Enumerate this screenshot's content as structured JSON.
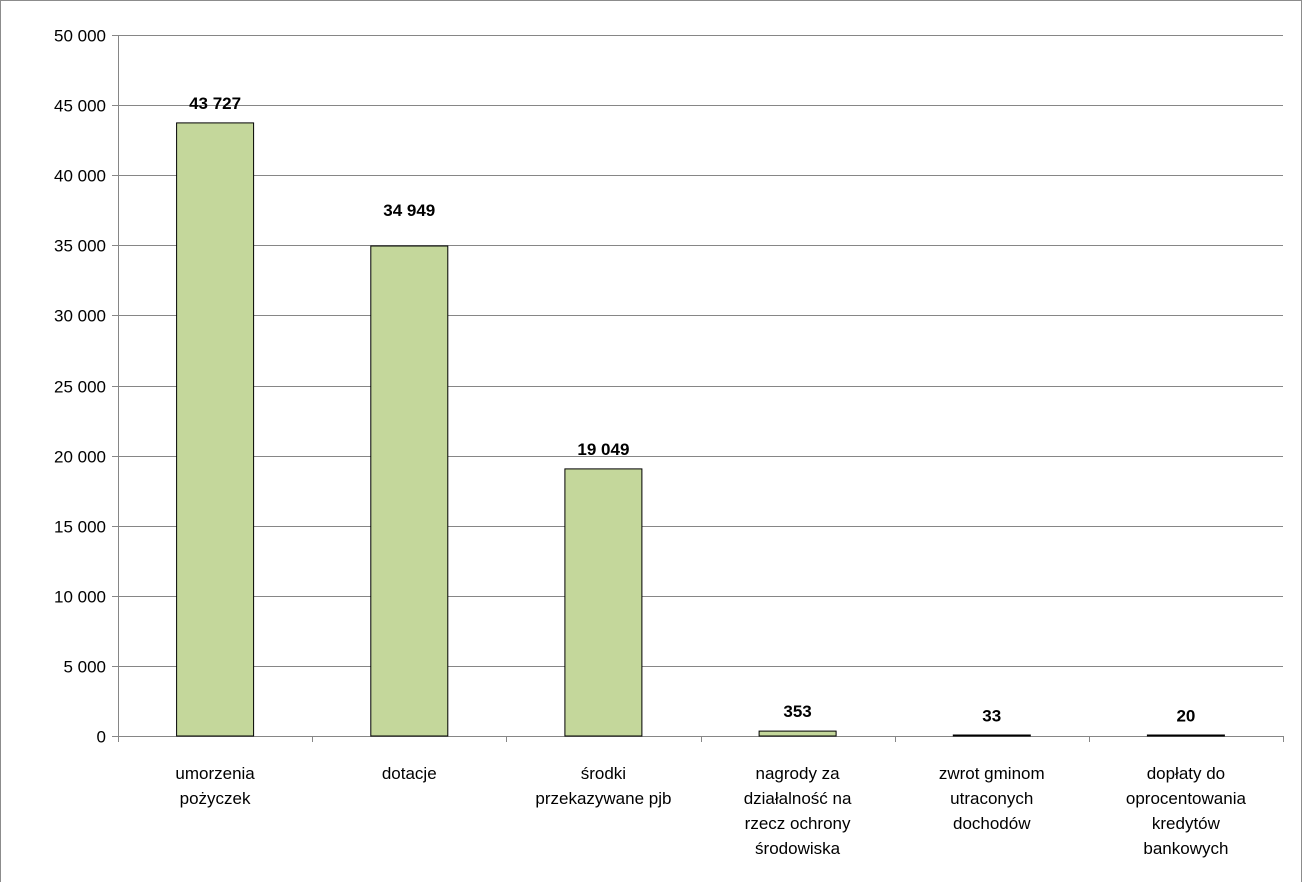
{
  "chart_data": {
    "type": "bar",
    "title": "",
    "xlabel": "",
    "ylabel": "",
    "ylim": [
      0,
      50000
    ],
    "y_ticks": [
      0,
      5000,
      10000,
      15000,
      20000,
      25000,
      30000,
      35000,
      40000,
      45000,
      50000
    ],
    "y_tick_labels": [
      "0",
      "5 000",
      "10 000",
      "15 000",
      "20 000",
      "25 000",
      "30 000",
      "35 000",
      "40 000",
      "45 000",
      "50 000"
    ],
    "grid": true,
    "legend": "none",
    "bar_color": "#c4d79b",
    "categories": [
      [
        "umorzenia",
        "pożyczek"
      ],
      [
        "dotacje"
      ],
      [
        "środki",
        "przekazywane pjb"
      ],
      [
        "nagrody za",
        "działalność na",
        "rzecz ochrony",
        "środowiska"
      ],
      [
        "zwrot gminom",
        "utraconych",
        "dochodów"
      ],
      [
        "dopłaty do",
        "oprocentowania",
        "kredytów",
        "bankowych"
      ]
    ],
    "values": [
      43727,
      34949,
      19049,
      353,
      33,
      20
    ],
    "data_labels": [
      "43 727",
      "34 949",
      "19 049",
      "353",
      "33",
      "20"
    ]
  }
}
